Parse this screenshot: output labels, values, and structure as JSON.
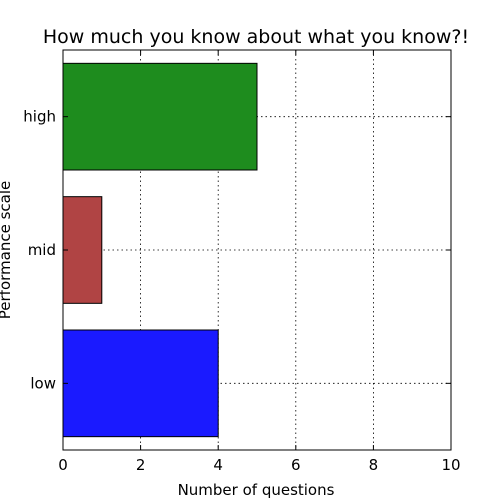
{
  "chart_data": {
    "type": "bar",
    "orientation": "horizontal",
    "title": "How much you know about what you know?!",
    "xlabel": "Number of questions",
    "ylabel": "Performance scale",
    "categories": [
      "low",
      "mid",
      "high"
    ],
    "values": [
      4,
      1,
      5
    ],
    "colors": [
      "#1a1aff",
      "#b04444",
      "#1e8c1e"
    ],
    "xlim": [
      0,
      10
    ],
    "xticks": [
      "0",
      "2",
      "4",
      "6",
      "8",
      "10"
    ],
    "grid": true
  }
}
